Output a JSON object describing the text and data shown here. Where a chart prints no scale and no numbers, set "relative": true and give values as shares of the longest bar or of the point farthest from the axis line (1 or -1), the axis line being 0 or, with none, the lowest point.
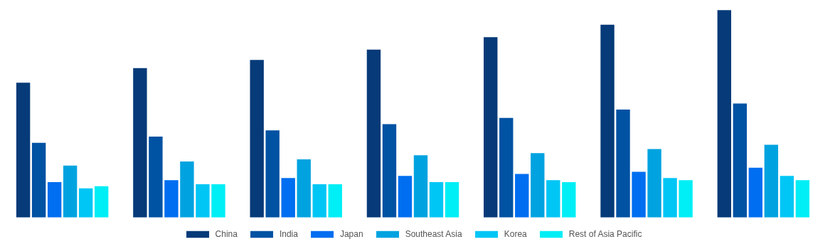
{
  "chart_data": {
    "type": "bar",
    "relative": true,
    "categories": [
      null,
      null,
      null,
      null,
      null,
      null,
      null
    ],
    "legend": "bottom",
    "series": [
      {
        "name": "China",
        "color": "#063a78",
        "values": [
          0.65,
          0.72,
          0.76,
          0.81,
          0.87,
          0.93,
          1.0
        ]
      },
      {
        "name": "India",
        "color": "#0052a3",
        "values": [
          0.36,
          0.39,
          0.42,
          0.45,
          0.48,
          0.52,
          0.55
        ]
      },
      {
        "name": "Japan",
        "color": "#006ef0",
        "values": [
          0.17,
          0.18,
          0.19,
          0.2,
          0.21,
          0.22,
          0.24
        ]
      },
      {
        "name": "Southeast Asia",
        "color": "#00a3e0",
        "values": [
          0.25,
          0.27,
          0.28,
          0.3,
          0.31,
          0.33,
          0.35
        ]
      },
      {
        "name": "Korea",
        "color": "#00c6f5",
        "values": [
          0.14,
          0.16,
          0.16,
          0.17,
          0.18,
          0.19,
          0.2
        ]
      },
      {
        "name": "Rest of Asia Pacific",
        "color": "#00eef5",
        "values": [
          0.15,
          0.16,
          0.16,
          0.17,
          0.17,
          0.18,
          0.18
        ]
      }
    ]
  }
}
